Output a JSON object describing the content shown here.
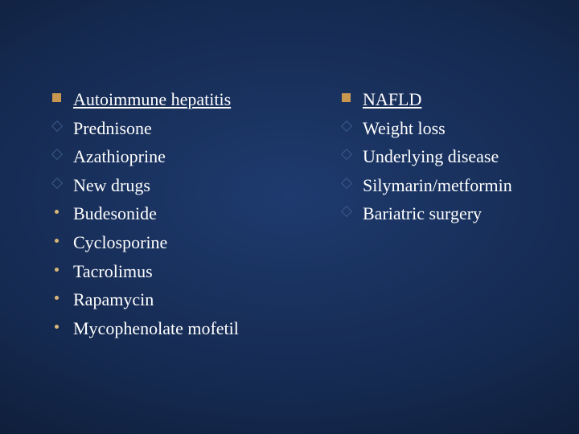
{
  "slide": {
    "background_colors": {
      "center": "#1e3a6e",
      "mid": "#14284d",
      "outer": "#0a1528",
      "edge": "#020510"
    },
    "text_color": "#ffffff",
    "font_family": "Times New Roman",
    "font_size_pt": 22,
    "bullet_colors": {
      "square": "#c89850",
      "diamond_border": "#3a5a8a",
      "dot": "#d8b878"
    },
    "left": {
      "heading": "Autoimmune hepatitis",
      "items": [
        {
          "bullet": "diamond",
          "text": "Prednisone"
        },
        {
          "bullet": "diamond",
          "text": "Azathioprine"
        },
        {
          "bullet": "diamond",
          "text": "New drugs"
        },
        {
          "bullet": "dot",
          "text": "Budesonide"
        },
        {
          "bullet": "dot",
          "text": "Cyclosporine"
        },
        {
          "bullet": "dot",
          "text": "Tacrolimus"
        },
        {
          "bullet": "dot",
          "text": "Rapamycin"
        },
        {
          "bullet": "dot",
          "text": "Mycophenolate mofetil"
        }
      ]
    },
    "right": {
      "heading": "NAFLD",
      "items": [
        {
          "bullet": "diamond",
          "text": "Weight loss"
        },
        {
          "bullet": "diamond",
          "text": "Underlying disease"
        },
        {
          "bullet": "diamond",
          "text": "Silymarin/metformin"
        },
        {
          "bullet": "diamond",
          "text": "Bariatric surgery"
        }
      ]
    }
  }
}
